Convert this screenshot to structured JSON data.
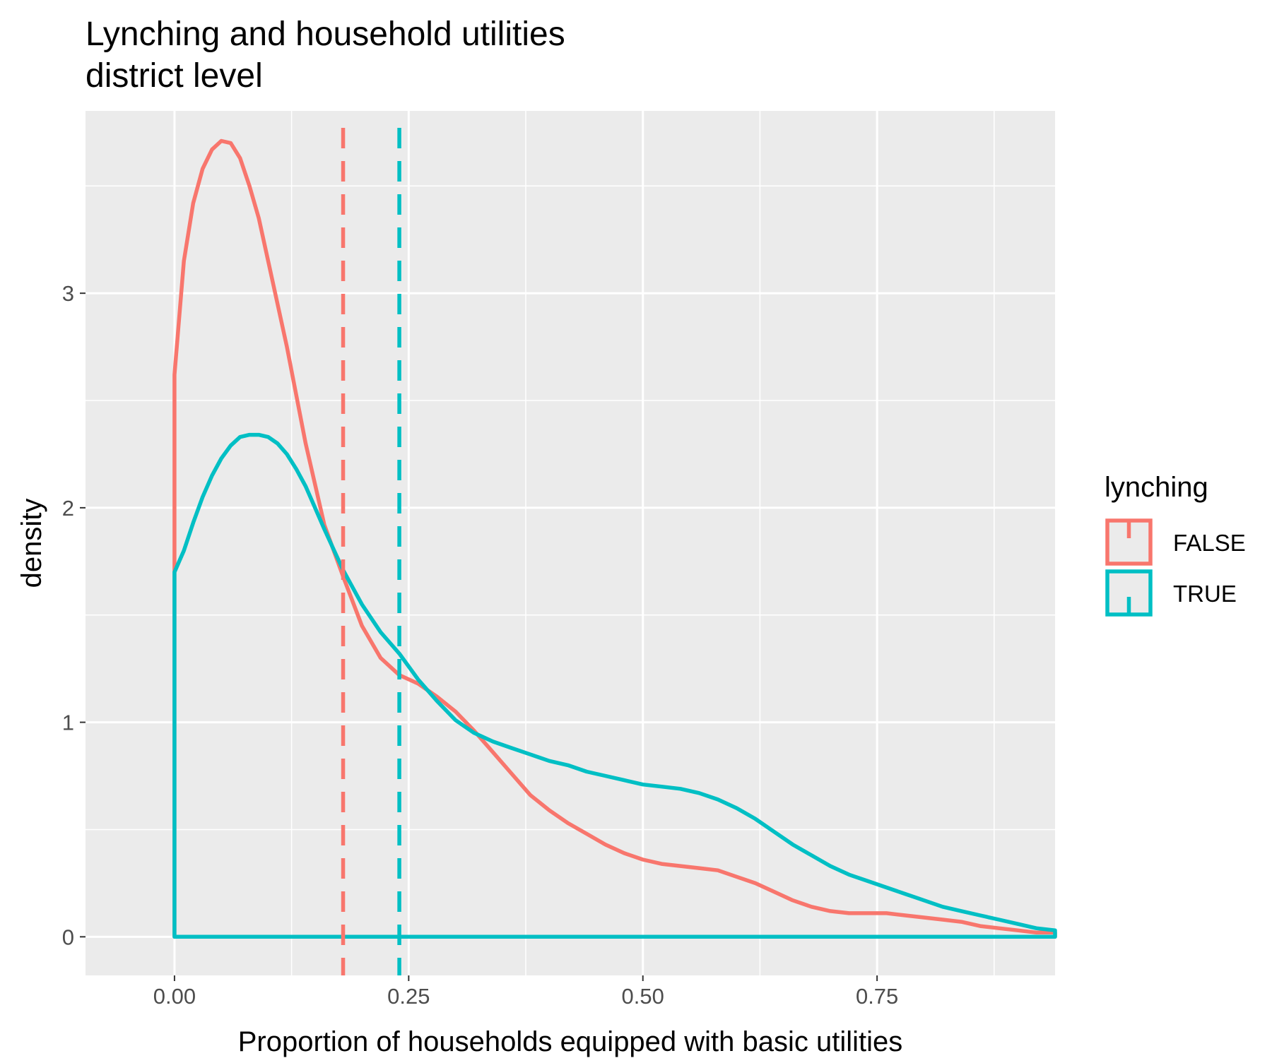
{
  "chart_data": {
    "type": "line",
    "title": "Lynching and household utilities",
    "subtitle": "district level",
    "xlabel": "Proportion of households equipped with basic utilities",
    "ylabel": "density",
    "xlim": [
      -0.095,
      0.94
    ],
    "ylim": [
      -0.18,
      3.85
    ],
    "x_ticks": [
      0.0,
      0.25,
      0.5,
      0.75
    ],
    "x_tick_labels": [
      "0.00",
      "0.25",
      "0.50",
      "0.75"
    ],
    "y_ticks": [
      0,
      1,
      2,
      3
    ],
    "y_tick_labels": [
      "0",
      "1",
      "2",
      "3"
    ],
    "grid": true,
    "legend": {
      "title": "lynching",
      "position": "right"
    },
    "series": [
      {
        "name": "FALSE",
        "color": "#F8766D",
        "mean": 0.18,
        "points": [
          [
            0.0,
            2.62
          ],
          [
            0.01,
            3.15
          ],
          [
            0.02,
            3.42
          ],
          [
            0.03,
            3.58
          ],
          [
            0.04,
            3.67
          ],
          [
            0.05,
            3.71
          ],
          [
            0.06,
            3.7
          ],
          [
            0.07,
            3.63
          ],
          [
            0.08,
            3.5
          ],
          [
            0.09,
            3.35
          ],
          [
            0.1,
            3.15
          ],
          [
            0.12,
            2.75
          ],
          [
            0.14,
            2.3
          ],
          [
            0.16,
            1.92
          ],
          [
            0.18,
            1.68
          ],
          [
            0.2,
            1.45
          ],
          [
            0.22,
            1.3
          ],
          [
            0.24,
            1.22
          ],
          [
            0.26,
            1.18
          ],
          [
            0.28,
            1.12
          ],
          [
            0.3,
            1.05
          ],
          [
            0.32,
            0.96
          ],
          [
            0.34,
            0.86
          ],
          [
            0.36,
            0.76
          ],
          [
            0.38,
            0.66
          ],
          [
            0.4,
            0.59
          ],
          [
            0.42,
            0.53
          ],
          [
            0.44,
            0.48
          ],
          [
            0.46,
            0.43
          ],
          [
            0.48,
            0.39
          ],
          [
            0.5,
            0.36
          ],
          [
            0.52,
            0.34
          ],
          [
            0.54,
            0.33
          ],
          [
            0.56,
            0.32
          ],
          [
            0.58,
            0.31
          ],
          [
            0.6,
            0.28
          ],
          [
            0.62,
            0.25
          ],
          [
            0.64,
            0.21
          ],
          [
            0.66,
            0.17
          ],
          [
            0.68,
            0.14
          ],
          [
            0.7,
            0.12
          ],
          [
            0.72,
            0.11
          ],
          [
            0.74,
            0.11
          ],
          [
            0.76,
            0.11
          ],
          [
            0.78,
            0.1
          ],
          [
            0.8,
            0.09
          ],
          [
            0.82,
            0.08
          ],
          [
            0.84,
            0.07
          ],
          [
            0.86,
            0.05
          ],
          [
            0.88,
            0.04
          ],
          [
            0.9,
            0.03
          ],
          [
            0.92,
            0.02
          ],
          [
            0.94,
            0.02
          ]
        ]
      },
      {
        "name": "TRUE",
        "color": "#00BFC4",
        "mean": 0.24,
        "points": [
          [
            0.0,
            1.7
          ],
          [
            0.01,
            1.8
          ],
          [
            0.02,
            1.93
          ],
          [
            0.03,
            2.05
          ],
          [
            0.04,
            2.15
          ],
          [
            0.05,
            2.23
          ],
          [
            0.06,
            2.29
          ],
          [
            0.07,
            2.33
          ],
          [
            0.08,
            2.34
          ],
          [
            0.09,
            2.34
          ],
          [
            0.1,
            2.33
          ],
          [
            0.11,
            2.3
          ],
          [
            0.12,
            2.25
          ],
          [
            0.13,
            2.18
          ],
          [
            0.14,
            2.1
          ],
          [
            0.15,
            2.0
          ],
          [
            0.16,
            1.9
          ],
          [
            0.18,
            1.71
          ],
          [
            0.2,
            1.55
          ],
          [
            0.22,
            1.42
          ],
          [
            0.24,
            1.32
          ],
          [
            0.26,
            1.2
          ],
          [
            0.28,
            1.1
          ],
          [
            0.3,
            1.01
          ],
          [
            0.32,
            0.95
          ],
          [
            0.34,
            0.91
          ],
          [
            0.36,
            0.88
          ],
          [
            0.38,
            0.85
          ],
          [
            0.4,
            0.82
          ],
          [
            0.42,
            0.8
          ],
          [
            0.44,
            0.77
          ],
          [
            0.46,
            0.75
          ],
          [
            0.48,
            0.73
          ],
          [
            0.5,
            0.71
          ],
          [
            0.52,
            0.7
          ],
          [
            0.54,
            0.69
          ],
          [
            0.56,
            0.67
          ],
          [
            0.58,
            0.64
          ],
          [
            0.6,
            0.6
          ],
          [
            0.62,
            0.55
          ],
          [
            0.64,
            0.49
          ],
          [
            0.66,
            0.43
          ],
          [
            0.68,
            0.38
          ],
          [
            0.7,
            0.33
          ],
          [
            0.72,
            0.29
          ],
          [
            0.74,
            0.26
          ],
          [
            0.76,
            0.23
          ],
          [
            0.78,
            0.2
          ],
          [
            0.8,
            0.17
          ],
          [
            0.82,
            0.14
          ],
          [
            0.84,
            0.12
          ],
          [
            0.86,
            0.1
          ],
          [
            0.88,
            0.08
          ],
          [
            0.9,
            0.06
          ],
          [
            0.92,
            0.04
          ],
          [
            0.94,
            0.03
          ]
        ]
      }
    ]
  }
}
